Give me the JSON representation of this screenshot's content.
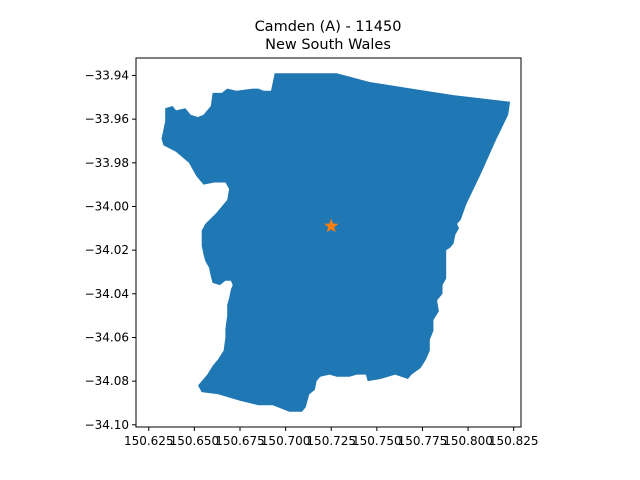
{
  "chart_data": {
    "type": "map",
    "title": "Camden (A) - 11450",
    "subtitle": "New South Wales",
    "xlim": [
      150.618,
      150.829
    ],
    "ylim": [
      -34.101,
      -33.932
    ],
    "x_ticks": [
      150.625,
      150.65,
      150.675,
      150.7,
      150.725,
      150.75,
      150.775,
      150.8,
      150.825
    ],
    "x_tick_labels": [
      "150.625",
      "150.650",
      "150.675",
      "150.700",
      "150.725",
      "150.750",
      "150.775",
      "150.800",
      "150.825"
    ],
    "y_ticks": [
      -33.94,
      -33.96,
      -33.98,
      -34.0,
      -34.02,
      -34.04,
      -34.06,
      -34.08,
      -34.1
    ],
    "y_tick_labels": [
      "−33.94",
      "−33.96",
      "−33.98",
      "−34.00",
      "−34.02",
      "−34.04",
      "−34.06",
      "−34.08",
      "−34.10"
    ],
    "region": {
      "fill": "#1f77b4",
      "polygon": [
        [
          150.694,
          -33.939
        ],
        [
          150.728,
          -33.939
        ],
        [
          150.746,
          -33.943
        ],
        [
          150.769,
          -33.946
        ],
        [
          150.792,
          -33.949
        ],
        [
          150.823,
          -33.952
        ],
        [
          150.822,
          -33.958
        ],
        [
          150.815,
          -33.97
        ],
        [
          150.807,
          -33.985
        ],
        [
          150.799,
          -33.999
        ],
        [
          150.796,
          -34.006
        ],
        [
          150.794,
          -34.008
        ],
        [
          150.795,
          -34.01
        ],
        [
          150.793,
          -34.013
        ],
        [
          150.792,
          -34.017
        ],
        [
          150.79,
          -34.019
        ],
        [
          150.788,
          -34.02
        ],
        [
          150.788,
          -34.025
        ],
        [
          150.788,
          -34.033
        ],
        [
          150.786,
          -34.036
        ],
        [
          150.786,
          -34.04
        ],
        [
          150.783,
          -34.043
        ],
        [
          150.784,
          -34.048
        ],
        [
          150.781,
          -34.052
        ],
        [
          150.781,
          -34.057
        ],
        [
          150.779,
          -34.061
        ],
        [
          150.779,
          -34.066
        ],
        [
          150.777,
          -34.07
        ],
        [
          150.774,
          -34.074
        ],
        [
          150.769,
          -34.077
        ],
        [
          150.767,
          -34.079
        ],
        [
          150.76,
          -34.077
        ],
        [
          150.752,
          -34.079
        ],
        [
          150.745,
          -34.08
        ],
        [
          150.744,
          -34.077
        ],
        [
          150.739,
          -34.077
        ],
        [
          150.735,
          -34.078
        ],
        [
          150.728,
          -34.078
        ],
        [
          150.724,
          -34.077
        ],
        [
          150.719,
          -34.078
        ],
        [
          150.717,
          -34.08
        ],
        [
          150.716,
          -34.084
        ],
        [
          150.713,
          -34.086
        ],
        [
          150.711,
          -34.092
        ],
        [
          150.709,
          -34.094
        ],
        [
          150.702,
          -34.094
        ],
        [
          150.693,
          -34.091
        ],
        [
          150.685,
          -34.091
        ],
        [
          150.675,
          -34.089
        ],
        [
          150.663,
          -34.086
        ],
        [
          150.654,
          -34.085
        ],
        [
          150.652,
          -34.082
        ],
        [
          150.657,
          -34.077
        ],
        [
          150.66,
          -34.073
        ],
        [
          150.663,
          -34.07
        ],
        [
          150.666,
          -34.066
        ],
        [
          150.667,
          -34.06
        ],
        [
          150.667,
          -34.056
        ],
        [
          150.668,
          -34.05
        ],
        [
          150.668,
          -34.045
        ],
        [
          150.669,
          -34.042
        ],
        [
          150.67,
          -34.038
        ],
        [
          150.671,
          -34.036
        ],
        [
          150.67,
          -34.034
        ],
        [
          150.667,
          -34.034
        ],
        [
          150.664,
          -34.036
        ],
        [
          150.66,
          -34.035
        ],
        [
          150.659,
          -34.032
        ],
        [
          150.658,
          -34.028
        ],
        [
          150.656,
          -34.025
        ],
        [
          150.655,
          -34.022
        ],
        [
          150.654,
          -34.018
        ],
        [
          150.654,
          -34.011
        ],
        [
          150.656,
          -34.008
        ],
        [
          150.662,
          -34.003
        ],
        [
          150.668,
          -33.997
        ],
        [
          150.669,
          -33.992
        ],
        [
          150.667,
          -33.989
        ],
        [
          150.661,
          -33.989
        ],
        [
          150.655,
          -33.99
        ],
        [
          150.651,
          -33.986
        ],
        [
          150.647,
          -33.98
        ],
        [
          150.64,
          -33.975
        ],
        [
          150.633,
          -33.972
        ],
        [
          150.632,
          -33.969
        ],
        [
          150.634,
          -33.961
        ],
        [
          150.634,
          -33.955
        ],
        [
          150.638,
          -33.954
        ],
        [
          150.64,
          -33.956
        ],
        [
          150.645,
          -33.955
        ],
        [
          150.648,
          -33.958
        ],
        [
          150.652,
          -33.959
        ],
        [
          150.655,
          -33.958
        ],
        [
          150.659,
          -33.954
        ],
        [
          150.66,
          -33.948
        ],
        [
          150.665,
          -33.948
        ],
        [
          150.668,
          -33.946
        ],
        [
          150.673,
          -33.947
        ],
        [
          150.682,
          -33.946
        ],
        [
          150.685,
          -33.946
        ],
        [
          150.688,
          -33.947
        ],
        [
          150.692,
          -33.947
        ],
        [
          150.694,
          -33.939
        ]
      ]
    },
    "marker": {
      "type": "star",
      "x": 150.725,
      "y": -34.009,
      "color": "#ff7f0e"
    }
  }
}
